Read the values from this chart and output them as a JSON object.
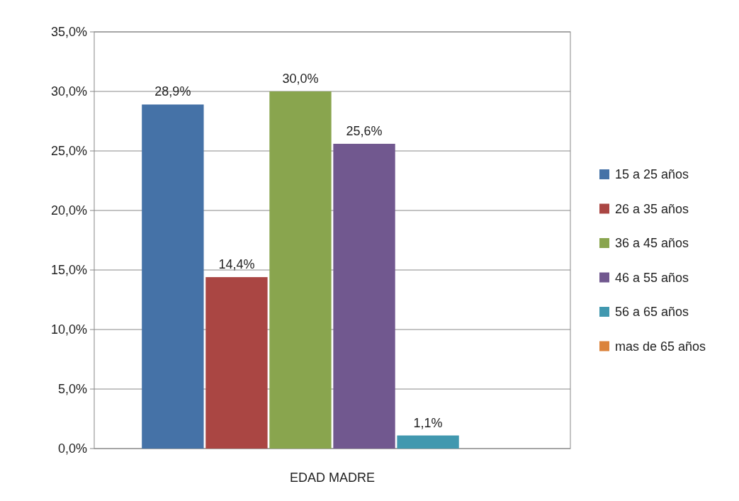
{
  "chart_data": {
    "type": "bar",
    "xlabel": "EDAD MADRE",
    "categories": [
      null
    ],
    "series": [
      {
        "name": "15 a 25 años",
        "color": "#4572a7",
        "values": [
          28.9
        ],
        "value_labels": [
          "28,9%"
        ]
      },
      {
        "name": "26 a 35 años",
        "color": "#aa4643",
        "values": [
          14.4
        ],
        "value_labels": [
          "14,4%"
        ]
      },
      {
        "name": "36 a 45 años",
        "color": "#89a54e",
        "values": [
          30.0
        ],
        "value_labels": [
          "30,0%"
        ]
      },
      {
        "name": "46 a 55 años",
        "color": "#71588f",
        "values": [
          25.6
        ],
        "value_labels": [
          "25,6%"
        ]
      },
      {
        "name": "56 a 65 años",
        "color": "#4198af",
        "values": [
          1.1
        ],
        "value_labels": [
          "1,1%"
        ]
      },
      {
        "name": "mas de 65 años",
        "color": "#db843d",
        "values": [
          null
        ],
        "value_labels": [
          null
        ]
      }
    ],
    "ylim": [
      0,
      35
    ],
    "yticks": [
      {
        "value": 0,
        "label": "0,0%"
      },
      {
        "value": 5,
        "label": "5,0%"
      },
      {
        "value": 10,
        "label": "10,0%"
      },
      {
        "value": 15,
        "label": "15,0%"
      },
      {
        "value": 20,
        "label": "20,0%"
      },
      {
        "value": 25,
        "label": "25,0%"
      },
      {
        "value": 30,
        "label": "30,0%"
      },
      {
        "value": 35,
        "label": "35,0%"
      }
    ],
    "grid": "y",
    "legend": "right"
  }
}
